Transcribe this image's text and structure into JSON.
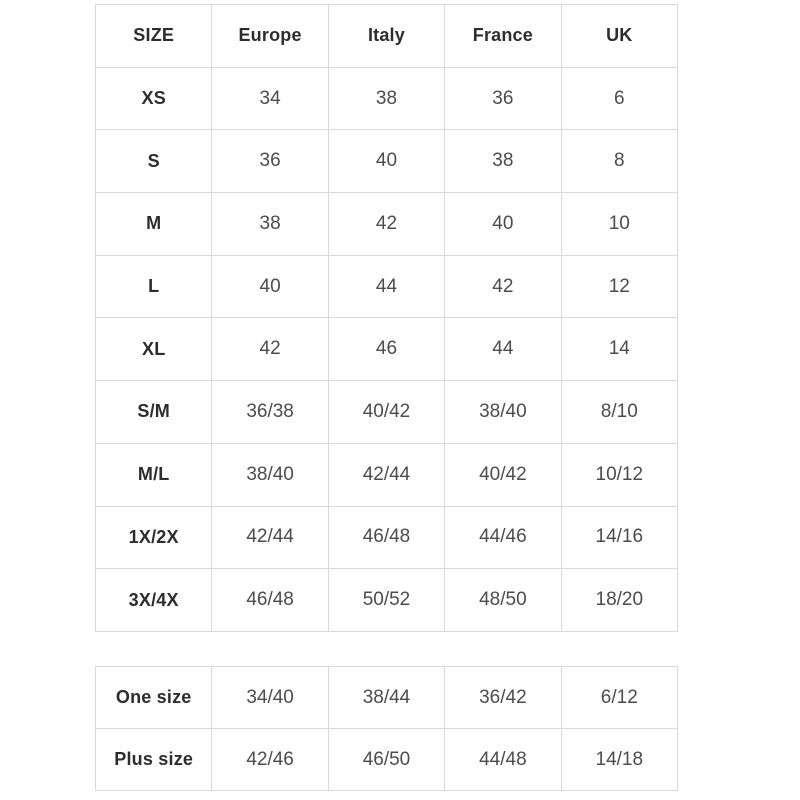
{
  "colors": {
    "background": "#ffffff",
    "border": "#d9d9d9",
    "header_text": "#2b2d31",
    "value_text": "#4a4c51"
  },
  "size_table": {
    "headers": [
      "SIZE",
      "Europe",
      "Italy",
      "France",
      "UK"
    ],
    "rows": [
      {
        "size": "XS",
        "values": [
          "34",
          "38",
          "36",
          "6"
        ]
      },
      {
        "size": "S",
        "values": [
          "36",
          "40",
          "38",
          "8"
        ]
      },
      {
        "size": "M",
        "values": [
          "38",
          "42",
          "40",
          "10"
        ]
      },
      {
        "size": "L",
        "values": [
          "40",
          "44",
          "42",
          "12"
        ]
      },
      {
        "size": "XL",
        "values": [
          "42",
          "46",
          "44",
          "14"
        ]
      },
      {
        "size": "S/M",
        "values": [
          "36/38",
          "40/42",
          "38/40",
          "8/10"
        ]
      },
      {
        "size": "M/L",
        "values": [
          "38/40",
          "42/44",
          "40/42",
          "10/12"
        ]
      },
      {
        "size": "1X/2X",
        "values": [
          "42/44",
          "46/48",
          "44/46",
          "14/16"
        ]
      },
      {
        "size": "3X/4X",
        "values": [
          "46/48",
          "50/52",
          "48/50",
          "18/20"
        ]
      }
    ]
  },
  "extra_size_table": {
    "rows": [
      {
        "size": "One size",
        "values": [
          "34/40",
          "38/44",
          "36/42",
          "6/12"
        ]
      },
      {
        "size": "Plus size",
        "values": [
          "42/46",
          "46/50",
          "44/48",
          "14/18"
        ]
      }
    ]
  }
}
